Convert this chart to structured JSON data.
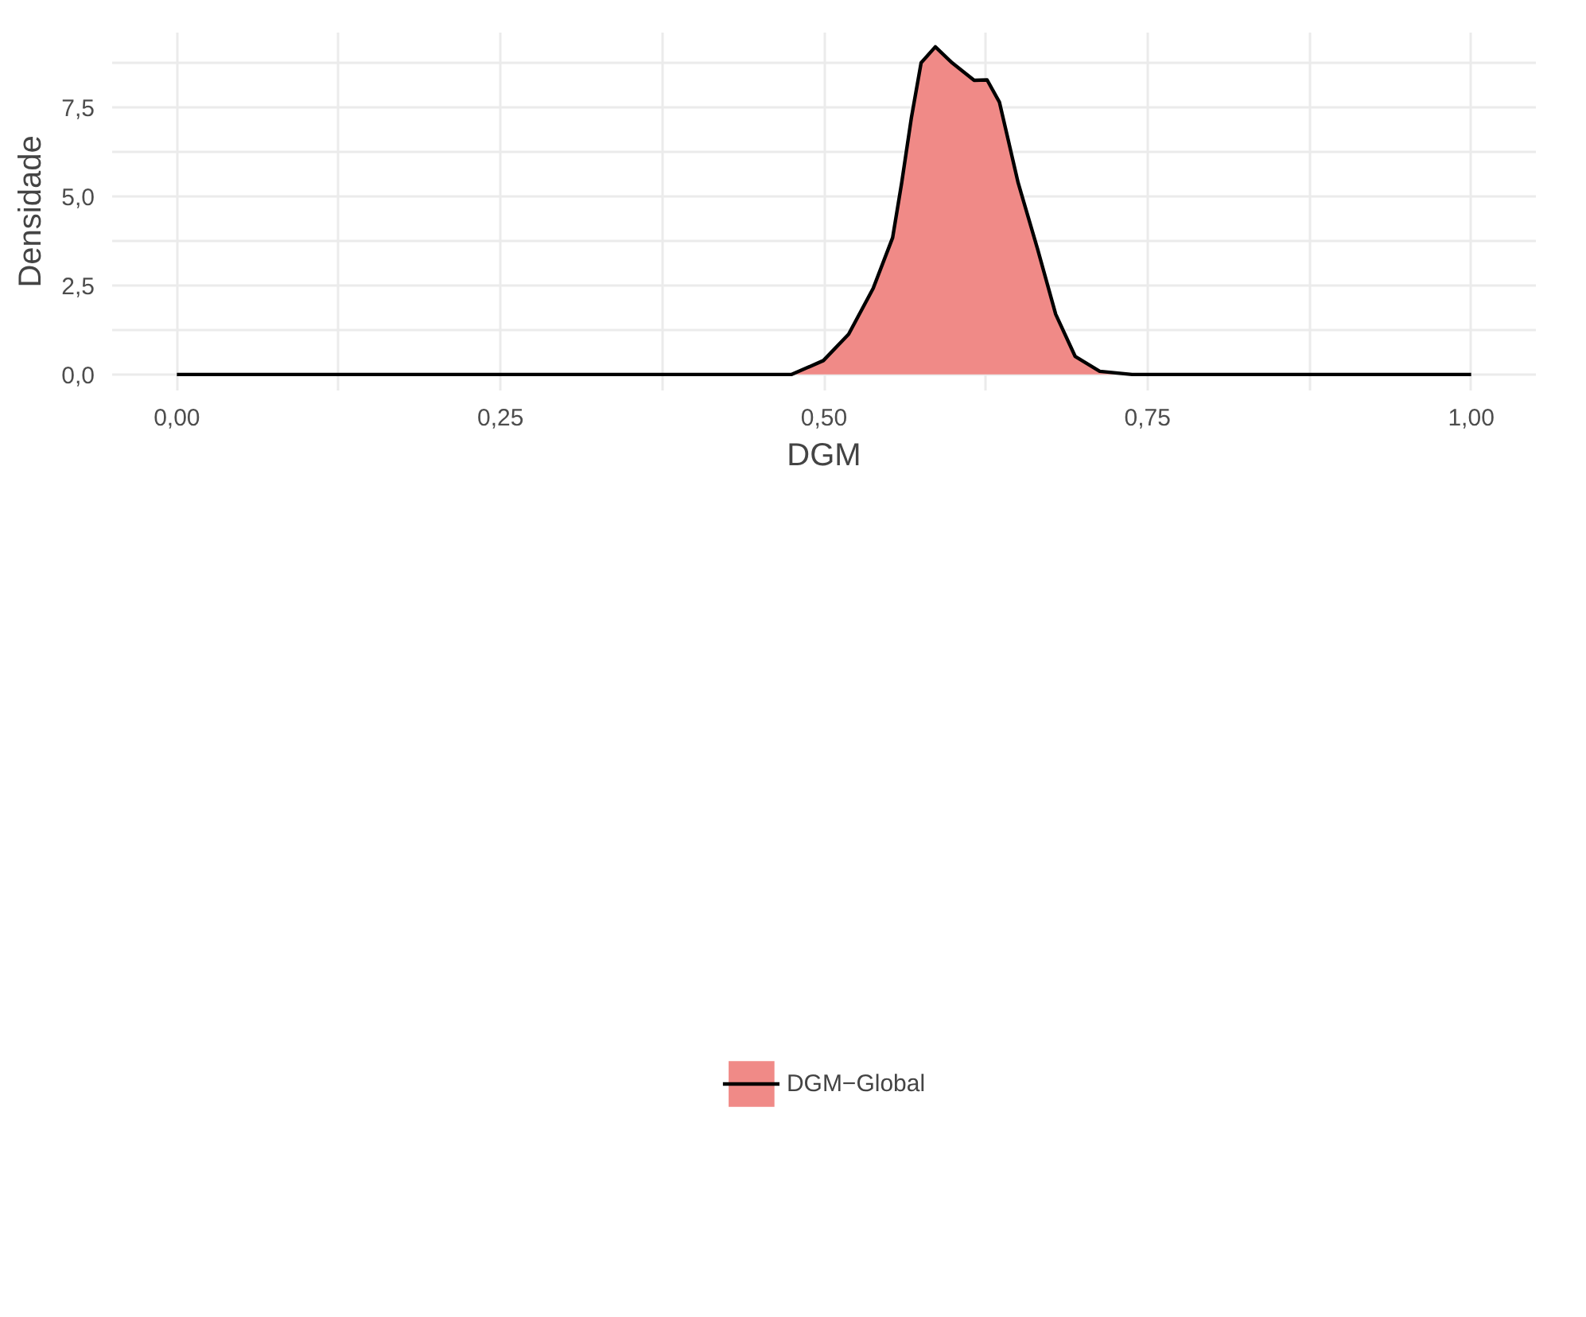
{
  "chart_data": {
    "type": "area",
    "xlabel": "DGM",
    "ylabel": "Densidade",
    "x": [
      0,
      0.475,
      0.4995,
      0.519,
      0.538,
      0.553,
      0.56,
      0.5675,
      0.575,
      0.586,
      0.599,
      0.616,
      0.626,
      0.6355,
      0.65,
      0.665,
      0.679,
      0.694,
      0.713,
      0.738,
      1
    ],
    "series": [
      {
        "name": "DGM−Global",
        "color": "#f08a87",
        "values": [
          0,
          0,
          0.39,
          1.13,
          2.42,
          3.84,
          5.38,
          7.21,
          8.75,
          9.2,
          8.75,
          8.26,
          8.27,
          7.65,
          5.38,
          3.52,
          1.69,
          0.51,
          0.09,
          0,
          0
        ]
      }
    ],
    "xlim": [
      -0.05,
      1.05
    ],
    "ylim": [
      -0.45,
      9.6
    ],
    "xticks": [
      {
        "value": 0,
        "label": "0,00"
      },
      {
        "value": 0.125,
        "label": null
      },
      {
        "value": 0.25,
        "label": "0,25"
      },
      {
        "value": 0.375,
        "label": null
      },
      {
        "value": 0.5,
        "label": "0,50"
      },
      {
        "value": 0.625,
        "label": null
      },
      {
        "value": 0.75,
        "label": "0,75"
      },
      {
        "value": 0.875,
        "label": null
      },
      {
        "value": 1,
        "label": "1,00"
      }
    ],
    "yticks": [
      {
        "value": 0,
        "label": "0,0"
      },
      {
        "value": 1.25,
        "label": null
      },
      {
        "value": 2.5,
        "label": "2,5"
      },
      {
        "value": 3.75,
        "label": null
      },
      {
        "value": 5,
        "label": "5,0"
      },
      {
        "value": 6.25,
        "label": null
      },
      {
        "value": 7.5,
        "label": "7,5"
      },
      {
        "value": 8.75,
        "label": null
      }
    ],
    "grid": true,
    "legend": "bottom"
  }
}
